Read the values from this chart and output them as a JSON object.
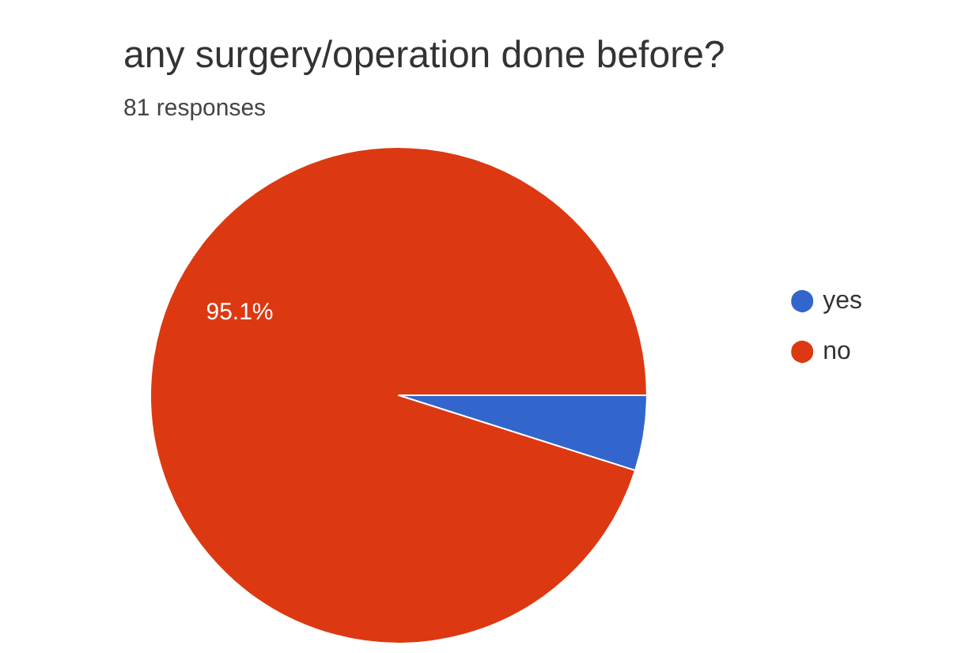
{
  "chart_data": {
    "type": "pie",
    "title": "any surgery/operation done before?",
    "subtitle": "81 responses",
    "categories": [
      "yes",
      "no"
    ],
    "values": [
      4.9,
      95.1
    ],
    "colors": [
      "#3366cc",
      "#dc3912"
    ],
    "value_labels": [
      null,
      "95.1%"
    ],
    "legend": "right"
  }
}
